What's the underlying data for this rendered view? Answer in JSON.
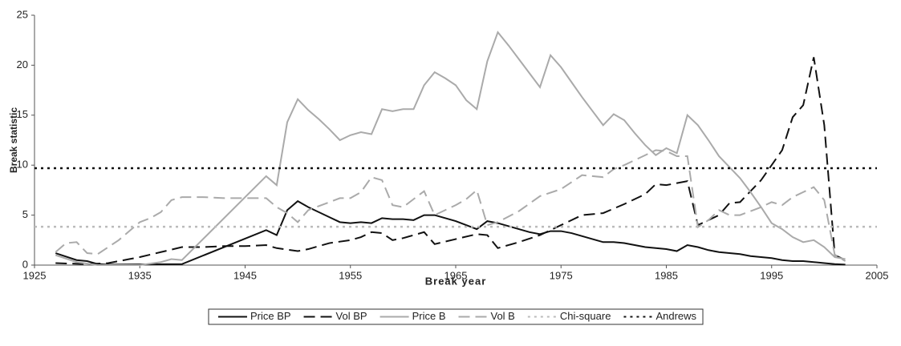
{
  "chart_data": {
    "type": "line",
    "x_label": "Break year",
    "y_label": "Break statistic",
    "xlim": [
      1925,
      2005
    ],
    "xticks": [
      1925,
      1935,
      1945,
      1955,
      1965,
      1975,
      1985,
      1995,
      2005
    ],
    "ylim": [
      0,
      25
    ],
    "yticks": [
      0,
      5,
      10,
      15,
      20,
      25
    ],
    "grid": false,
    "legend": "bottom",
    "series": [
      {
        "name": "Price BP",
        "color": "#111111",
        "dash": "solid",
        "x": [
          1927,
          1929,
          1930,
          1931,
          1932,
          1939,
          1947,
          1948,
          1949,
          1950,
          1951,
          1952,
          1953,
          1954,
          1955,
          1956,
          1957,
          1958,
          1959,
          1960,
          1961,
          1962,
          1963,
          1964,
          1965,
          1966,
          1967,
          1968,
          1969,
          1970,
          1971,
          1972,
          1973,
          1974,
          1975,
          1976,
          1977,
          1978,
          1979,
          1980,
          1981,
          1982,
          1983,
          1984,
          1985,
          1986,
          1987,
          1988,
          1989,
          1990,
          1991,
          1992,
          1993,
          1994,
          1995,
          1996,
          1997,
          1998,
          1999,
          2000,
          2001,
          2002
        ],
        "values": [
          1.2,
          0.5,
          0.4,
          0.1,
          0.05,
          0.1,
          3.5,
          3.0,
          5.5,
          6.4,
          5.8,
          5.3,
          4.8,
          4.3,
          4.2,
          4.3,
          4.2,
          4.7,
          4.6,
          4.6,
          4.5,
          5.0,
          5.0,
          4.7,
          4.4,
          4.0,
          3.6,
          4.4,
          4.2,
          3.9,
          3.6,
          3.3,
          3.1,
          3.4,
          3.4,
          3.2,
          2.9,
          2.6,
          2.3,
          2.3,
          2.2,
          2.0,
          1.8,
          1.7,
          1.6,
          1.4,
          2.0,
          1.8,
          1.5,
          1.3,
          1.2,
          1.1,
          0.9,
          0.8,
          0.7,
          0.5,
          0.4,
          0.4,
          0.3,
          0.2,
          0.1,
          0.05
        ]
      },
      {
        "name": "Vol BP",
        "color": "#111111",
        "dash": "dashed",
        "x": [
          1927,
          1930,
          1932,
          1934,
          1935,
          1937,
          1939,
          1941,
          1943,
          1945,
          1947,
          1948,
          1950,
          1951,
          1953,
          1955,
          1956,
          1957,
          1958,
          1959,
          1960,
          1962,
          1963,
          1965,
          1967,
          1968,
          1969,
          1971,
          1973,
          1975,
          1977,
          1979,
          1981,
          1983,
          1984,
          1985,
          1987,
          1988,
          1990,
          1991,
          1992,
          1994,
          1996,
          1997,
          1998,
          1999,
          2000,
          2001,
          2002
        ],
        "values": [
          0.2,
          0.1,
          0.2,
          0.6,
          0.8,
          1.3,
          1.8,
          1.8,
          1.9,
          1.9,
          2.0,
          1.7,
          1.4,
          1.6,
          2.2,
          2.5,
          2.8,
          3.3,
          3.2,
          2.5,
          2.7,
          3.3,
          2.1,
          2.6,
          3.1,
          3.0,
          1.7,
          2.3,
          3.0,
          4.0,
          5.0,
          5.2,
          6.1,
          7.1,
          8.1,
          8.0,
          8.4,
          4.0,
          5.0,
          6.2,
          6.3,
          8.5,
          11.5,
          14.8,
          16,
          20.8,
          14,
          1.0,
          0.5
        ]
      },
      {
        "name": "Price B",
        "color": "#aaaaaa",
        "dash": "solid",
        "x": [
          1927,
          1929,
          1931,
          1935,
          1937,
          1938,
          1939,
          1947,
          1948,
          1949,
          1950,
          1951,
          1952,
          1953,
          1954,
          1955,
          1956,
          1957,
          1958,
          1959,
          1960,
          1961,
          1962,
          1963,
          1964,
          1965,
          1966,
          1967,
          1968,
          1969,
          1970,
          1971,
          1972,
          1973,
          1974,
          1975,
          1976,
          1977,
          1978,
          1979,
          1980,
          1981,
          1982,
          1983,
          1984,
          1985,
          1986,
          1987,
          1988,
          1989,
          1990,
          1991,
          1992,
          1993,
          1994,
          1995,
          1996,
          1997,
          1998,
          1999,
          2000,
          2001,
          2002
        ],
        "values": [
          1.0,
          0.3,
          0.0,
          0.0,
          0.3,
          0.6,
          0.5,
          8.9,
          8.0,
          14.3,
          16.6,
          15.5,
          14.6,
          13.6,
          12.5,
          13.0,
          13.3,
          13.1,
          15.6,
          15.4,
          15.6,
          15.6,
          18.0,
          19.3,
          18.7,
          18.0,
          16.5,
          15.6,
          20.4,
          23.3,
          22.0,
          20.6,
          19.2,
          17.8,
          21.0,
          19.8,
          18.3,
          16.8,
          15.4,
          14.0,
          15.1,
          14.5,
          13.2,
          12.0,
          11.0,
          11.7,
          11.2,
          15.0,
          14.0,
          12.5,
          10.9,
          9.8,
          8.7,
          7.3,
          5.8,
          4.2,
          3.6,
          2.8,
          2.3,
          2.5,
          1.8,
          0.8,
          0.6
        ]
      },
      {
        "name": "Vol B",
        "color": "#aaaaaa",
        "dash": "dashed",
        "x": [
          1927,
          1928,
          1929,
          1930,
          1931,
          1933,
          1935,
          1936,
          1937,
          1938,
          1939,
          1941,
          1943,
          1945,
          1947,
          1948,
          1949,
          1950,
          1951,
          1953,
          1954,
          1955,
          1956,
          1957,
          1958,
          1959,
          1960,
          1961,
          1962,
          1963,
          1965,
          1966,
          1967,
          1968,
          1969,
          1971,
          1973,
          1975,
          1977,
          1979,
          1980,
          1981,
          1983,
          1984,
          1985,
          1986,
          1987,
          1988,
          1989,
          1990,
          1991,
          1992,
          1994,
          1995,
          1996,
          1997,
          1998,
          1999,
          2000,
          2001,
          2002
        ],
        "values": [
          1.3,
          2.2,
          2.3,
          1.2,
          1.1,
          2.5,
          4.3,
          4.7,
          5.3,
          6.5,
          6.8,
          6.8,
          6.7,
          6.7,
          6.7,
          5.8,
          5.2,
          4.3,
          5.5,
          6.3,
          6.7,
          6.7,
          7.3,
          8.8,
          8.5,
          6.0,
          5.8,
          6.6,
          7.4,
          5.0,
          6.0,
          6.6,
          7.5,
          4.0,
          4.3,
          5.4,
          6.9,
          7.6,
          9.0,
          8.8,
          9.6,
          10.0,
          11.0,
          11.5,
          11.4,
          10.9,
          10.9,
          3.8,
          4.5,
          5.5,
          5.0,
          5.0,
          5.8,
          6.3,
          6.0,
          6.8,
          7.3,
          7.8,
          6.5,
          1.0,
          0.4
        ]
      },
      {
        "name": "Chi-square",
        "color": "#bbbbbb",
        "dash": "dotted",
        "x": [
          1925,
          2005
        ],
        "values": [
          3.84,
          3.84
        ]
      },
      {
        "name": "Andrews",
        "color": "#111111",
        "dash": "dotted",
        "x": [
          1925,
          2005
        ],
        "values": [
          9.7,
          9.7
        ]
      }
    ]
  }
}
